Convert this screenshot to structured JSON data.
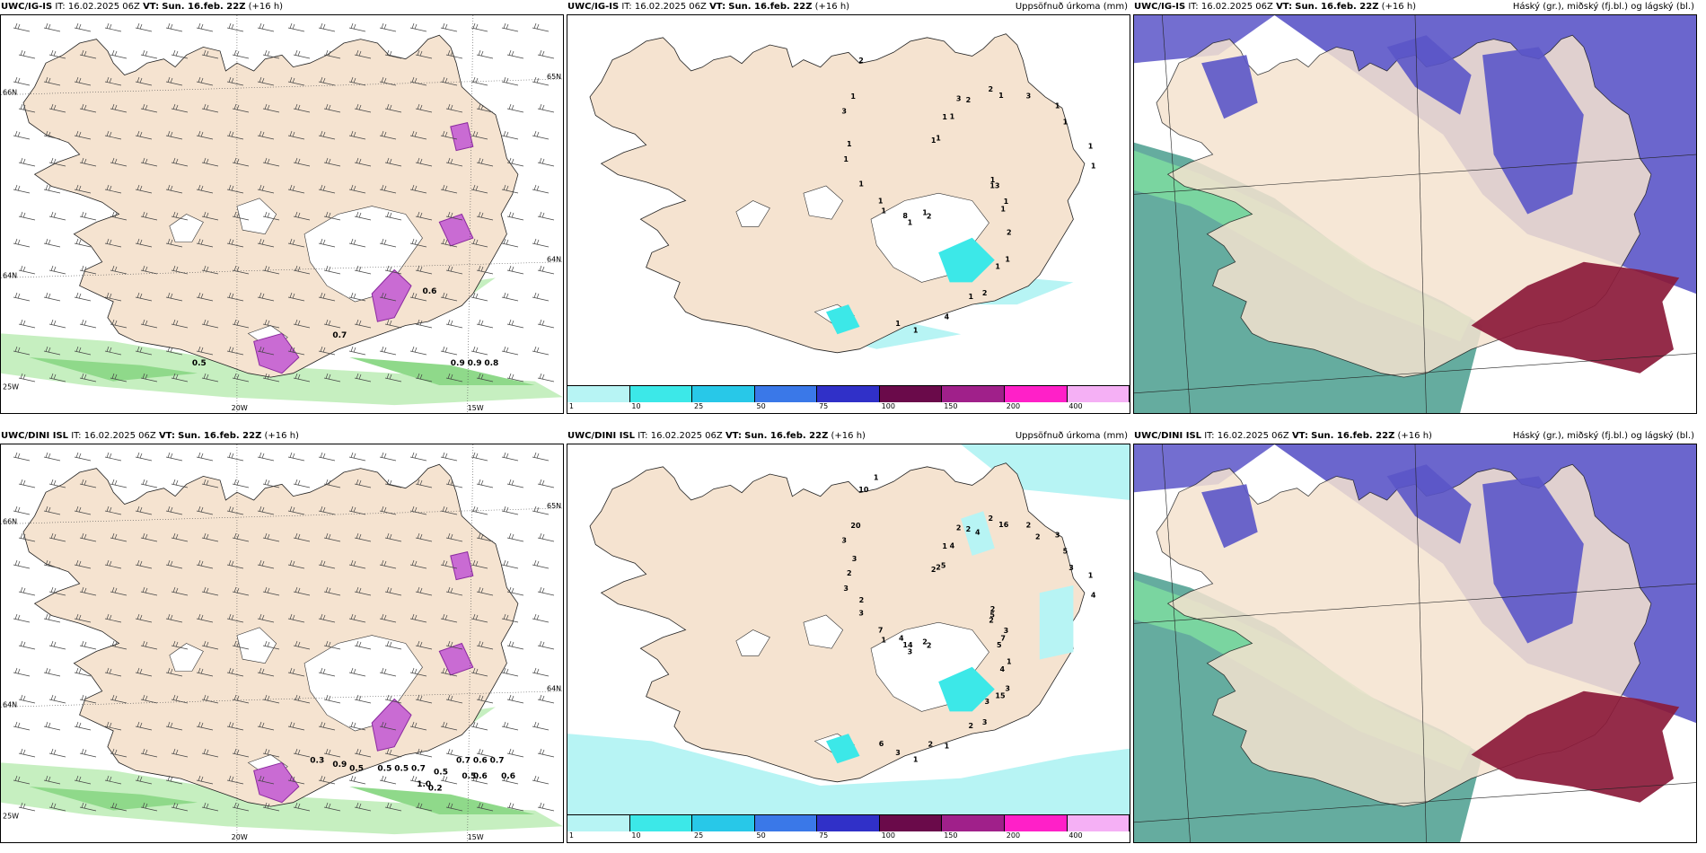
{
  "panels": [
    {
      "row": 0,
      "col": 0,
      "model": "UWC/IG-IS",
      "it_label": "IT:",
      "it_value": "16.02.2025 06Z",
      "vt_label": "VT:",
      "vt_value": "Sun. 16.feb. 22Z",
      "lead": "(+16 h)",
      "title_right": "",
      "lon_labels": [
        "20W",
        "15W"
      ],
      "lat_labels_left": [
        "66N",
        "64N",
        "25W"
      ],
      "lat_labels_right": [
        "65N",
        "64N"
      ],
      "values": [
        "0.5",
        "0.7",
        "0.6",
        "0.9",
        "0.9",
        "0.8"
      ]
    },
    {
      "row": 0,
      "col": 1,
      "model": "UWC/IG-IS",
      "it_label": "IT:",
      "it_value": "16.02.2025 06Z",
      "vt_label": "VT:",
      "vt_value": "Sun. 16.feb. 22Z",
      "lead": "(+16 h)",
      "title_right": "Uppsöfnuð úrkoma (mm)",
      "colorbar": [
        "1",
        "10",
        "25",
        "50",
        "75",
        "100",
        "150",
        "200",
        "400"
      ],
      "values": [
        "1",
        "1",
        "3",
        "1",
        "1",
        "1",
        "1",
        "1",
        "1",
        "1",
        "2",
        "2",
        "3",
        "1",
        "2",
        "1",
        "2",
        "1",
        "3",
        "4",
        "2",
        "13",
        "8",
        "2",
        "1",
        "1",
        "1",
        "1",
        "1",
        "1",
        "1",
        "1",
        "1",
        "1",
        "1",
        "1",
        "1"
      ]
    },
    {
      "row": 0,
      "col": 2,
      "model": "UWC/IG-IS",
      "it_label": "IT:",
      "it_value": "16.02.2025 06Z",
      "vt_label": "VT:",
      "vt_value": "Sun. 16.feb. 22Z",
      "lead": "(+16 h)",
      "title_right": "Háský (gr.), miðský (fj.bl.) og lágský (bl.)"
    },
    {
      "row": 1,
      "col": 0,
      "model": "UWC/DINI ISL",
      "it_label": "IT:",
      "it_value": "16.02.2025 06Z",
      "vt_label": "VT:",
      "vt_value": "Sun. 16.feb. 22Z",
      "lead": "(+16 h)",
      "title_right": "",
      "lon_labels": [
        "20W",
        "15W"
      ],
      "lat_labels_left": [
        "66N",
        "64N",
        "25W"
      ],
      "lat_labels_right": [
        "65N",
        "64N"
      ],
      "values": [
        "0.3",
        "0.9",
        "0.5",
        "0.5",
        "0.5",
        "0.7",
        "0.5",
        "0.7",
        "0.6",
        "0.7",
        "0.6",
        "0.5",
        "0.6",
        "1.0",
        "0.2"
      ]
    },
    {
      "row": 1,
      "col": 1,
      "model": "UWC/DINI ISL",
      "it_label": "IT:",
      "it_value": "16.02.2025 06Z",
      "vt_label": "VT:",
      "vt_value": "Sun. 16.feb. 22Z",
      "lead": "(+16 h)",
      "title_right": "Uppsöfnuð úrkoma (mm)",
      "colorbar": [
        "1",
        "10",
        "25",
        "50",
        "75",
        "100",
        "150",
        "200",
        "400"
      ],
      "values": [
        "2",
        "3",
        "2",
        "3",
        "3",
        "3",
        "1",
        "2",
        "3",
        "1",
        "2",
        "3",
        "3",
        "1",
        "2",
        "1",
        "1",
        "3",
        "2",
        "1",
        "10",
        "5",
        "14",
        "2",
        "15",
        "2",
        "5",
        "3",
        "2",
        "7",
        "7",
        "16",
        "2",
        "20",
        "4",
        "2",
        "4",
        "4",
        "2",
        "2",
        "2",
        "1",
        "2",
        "4",
        "4",
        "3",
        "3",
        "3",
        "6",
        "5",
        "5"
      ]
    },
    {
      "row": 1,
      "col": 2,
      "model": "UWC/DINI ISL",
      "it_label": "IT:",
      "it_value": "16.02.2025 06Z",
      "vt_label": "VT:",
      "vt_value": "Sun. 16.feb. 22Z",
      "lead": "(+16 h)",
      "title_right": "Háský (gr.), miðský (fj.bl.) og lágský (bl.)"
    }
  ],
  "colors": {
    "land": "#f5e3d0",
    "land_dark": "#e8d4bf",
    "sea": "#ffffff",
    "green_light": "#c6efc0",
    "green": "#8fd98a",
    "green_dark": "#5dbb6a",
    "magenta": "#c96bd3",
    "magenta_dark": "#8a2a9e",
    "cyan_light": "#b7f4f4",
    "cyan": "#3ce8e8",
    "cloud_high": "#4a9e8e",
    "cloud_mid": "#5b55c8",
    "cloud_low": "#3a7ee8",
    "cloud_red": "#8b1a3a",
    "colorbar": [
      "#b7f4f4",
      "#3ce8e8",
      "#28c8e8",
      "#3a78e8",
      "#3030c8",
      "#6a0a4a",
      "#a0208a",
      "#ff20c8",
      "#f5b0f5"
    ]
  }
}
